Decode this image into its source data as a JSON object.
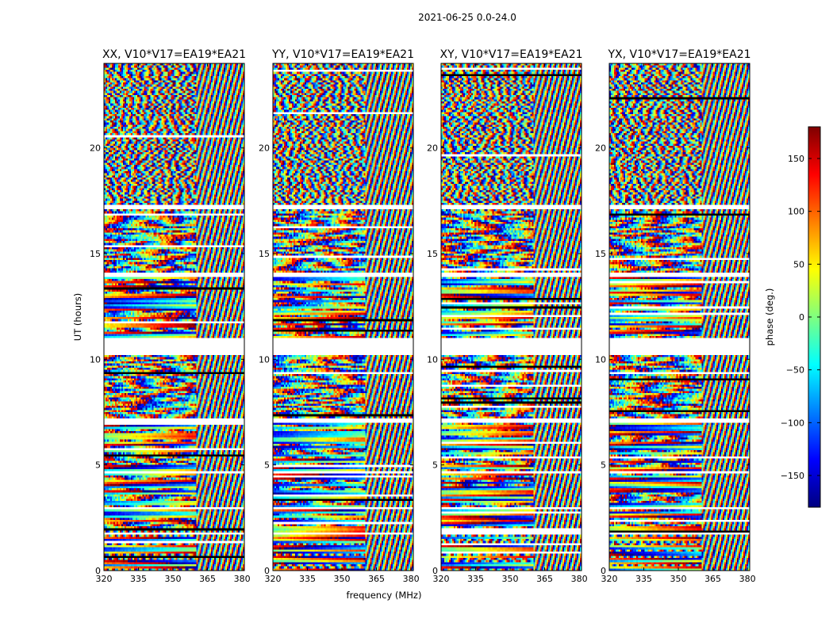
{
  "chart_data": {
    "type": "heatmap",
    "suptitle": "2021-06-25 0.0-24.0",
    "xlabel": "frequency (MHz)",
    "ylabel": "UT (hours)",
    "xlim": [
      320,
      381
    ],
    "ylim": [
      0,
      24
    ],
    "xticks": [
      320,
      335,
      350,
      365,
      380
    ],
    "yticks": [
      0,
      5,
      10,
      15,
      20
    ],
    "panels": [
      {
        "title": "XX, V10*V17=EA19*EA21",
        "polarization": "XX"
      },
      {
        "title": "YY, V10*V17=EA19*EA21",
        "polarization": "YY"
      },
      {
        "title": "XY, V10*V17=EA19*EA21",
        "polarization": "XY"
      },
      {
        "title": "YX, V10*V17=EA19*EA21",
        "polarization": "YX"
      }
    ],
    "colorbar": {
      "label": "phase (deg.)",
      "range": [
        -180,
        180
      ],
      "ticks": [
        -150,
        -100,
        -50,
        0,
        50,
        100,
        150
      ],
      "tick_labels": [
        "−150",
        "−100",
        "−50",
        "0",
        "50",
        "100",
        "150"
      ],
      "colormap": "jet"
    },
    "gaps_hours": [
      [
        10.2,
        11.0
      ],
      [
        17.1,
        17.3
      ],
      [
        13.9,
        14.1
      ],
      [
        7.0,
        7.2
      ],
      [
        4.6,
        4.7
      ],
      [
        2.9,
        3.0
      ],
      [
        1.7,
        1.8
      ]
    ],
    "rfi_band_start_mhz": 360
  },
  "colors": {
    "axes": "#000000",
    "background": "#ffffff",
    "jet_stops": [
      "#00007f",
      "#0000ff",
      "#007fff",
      "#00ffff",
      "#7fff7f",
      "#ffff00",
      "#ff7f00",
      "#ff0000",
      "#7f0000"
    ]
  }
}
